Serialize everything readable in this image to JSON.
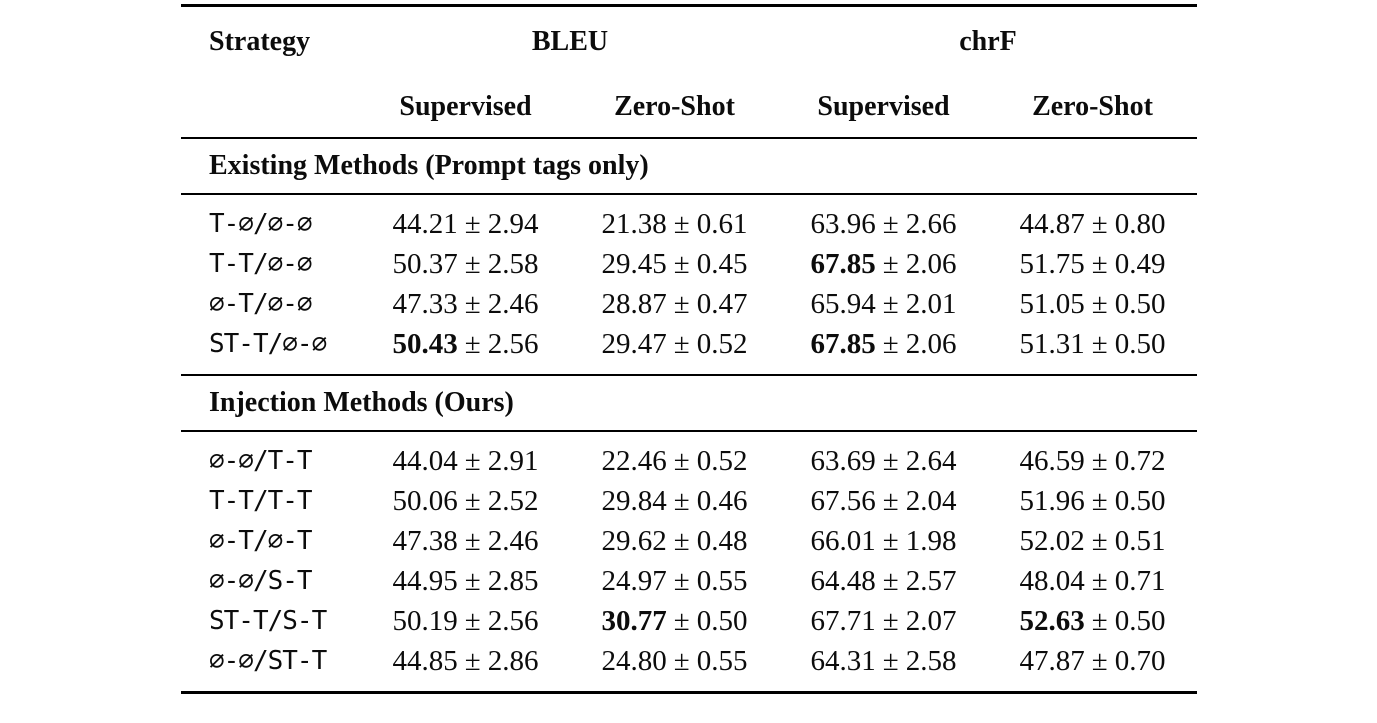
{
  "pm": "±",
  "header": {
    "strategy": "Strategy",
    "bleu": "BLEU",
    "chrf": "chrF",
    "sub": {
      "bleu_supervised": "Supervised",
      "bleu_zeroshot": "Zero-Shot",
      "chrf_supervised": "Supervised",
      "chrf_zeroshot": "Zero-Shot"
    }
  },
  "sections": [
    {
      "title": "Existing Methods (Prompt tags only)",
      "rows": [
        {
          "strategy": "T-∅/∅-∅",
          "cells": [
            {
              "v": "44.21",
              "e": "2.94",
              "b": false
            },
            {
              "v": "21.38",
              "e": "0.61",
              "b": false
            },
            {
              "v": "63.96",
              "e": "2.66",
              "b": false
            },
            {
              "v": "44.87",
              "e": "0.80",
              "b": false
            }
          ]
        },
        {
          "strategy": "T-T/∅-∅",
          "cells": [
            {
              "v": "50.37",
              "e": "2.58",
              "b": false
            },
            {
              "v": "29.45",
              "e": "0.45",
              "b": false
            },
            {
              "v": "67.85",
              "e": "2.06",
              "b": true
            },
            {
              "v": "51.75",
              "e": "0.49",
              "b": false
            }
          ]
        },
        {
          "strategy": "∅-T/∅-∅",
          "cells": [
            {
              "v": "47.33",
              "e": "2.46",
              "b": false
            },
            {
              "v": "28.87",
              "e": "0.47",
              "b": false
            },
            {
              "v": "65.94",
              "e": "2.01",
              "b": false
            },
            {
              "v": "51.05",
              "e": "0.50",
              "b": false
            }
          ]
        },
        {
          "strategy": "ST-T/∅-∅",
          "cells": [
            {
              "v": "50.43",
              "e": "2.56",
              "b": true
            },
            {
              "v": "29.47",
              "e": "0.52",
              "b": false
            },
            {
              "v": "67.85",
              "e": "2.06",
              "b": true
            },
            {
              "v": "51.31",
              "e": "0.50",
              "b": false
            }
          ]
        }
      ]
    },
    {
      "title": "Injection Methods (Ours)",
      "rows": [
        {
          "strategy": "∅-∅/T-T",
          "cells": [
            {
              "v": "44.04",
              "e": "2.91",
              "b": false
            },
            {
              "v": "22.46",
              "e": "0.52",
              "b": false
            },
            {
              "v": "63.69",
              "e": "2.64",
              "b": false
            },
            {
              "v": "46.59",
              "e": "0.72",
              "b": false
            }
          ]
        },
        {
          "strategy": "T-T/T-T",
          "cells": [
            {
              "v": "50.06",
              "e": "2.52",
              "b": false
            },
            {
              "v": "29.84",
              "e": "0.46",
              "b": false
            },
            {
              "v": "67.56",
              "e": "2.04",
              "b": false
            },
            {
              "v": "51.96",
              "e": "0.50",
              "b": false
            }
          ]
        },
        {
          "strategy": "∅-T/∅-T",
          "cells": [
            {
              "v": "47.38",
              "e": "2.46",
              "b": false
            },
            {
              "v": "29.62",
              "e": "0.48",
              "b": false
            },
            {
              "v": "66.01",
              "e": "1.98",
              "b": false
            },
            {
              "v": "52.02",
              "e": "0.51",
              "b": false
            }
          ]
        },
        {
          "strategy": "∅-∅/S-T",
          "cells": [
            {
              "v": "44.95",
              "e": "2.85",
              "b": false
            },
            {
              "v": "24.97",
              "e": "0.55",
              "b": false
            },
            {
              "v": "64.48",
              "e": "2.57",
              "b": false
            },
            {
              "v": "48.04",
              "e": "0.71",
              "b": false
            }
          ]
        },
        {
          "strategy": "ST-T/S-T",
          "cells": [
            {
              "v": "50.19",
              "e": "2.56",
              "b": false
            },
            {
              "v": "30.77",
              "e": "0.50",
              "b": true
            },
            {
              "v": "67.71",
              "e": "2.07",
              "b": false
            },
            {
              "v": "52.63",
              "e": "0.50",
              "b": true
            }
          ]
        },
        {
          "strategy": "∅-∅/ST-T",
          "cells": [
            {
              "v": "44.85",
              "e": "2.86",
              "b": false
            },
            {
              "v": "24.80",
              "e": "0.55",
              "b": false
            },
            {
              "v": "64.31",
              "e": "2.58",
              "b": false
            },
            {
              "v": "47.87",
              "e": "0.70",
              "b": false
            }
          ]
        }
      ]
    }
  ]
}
